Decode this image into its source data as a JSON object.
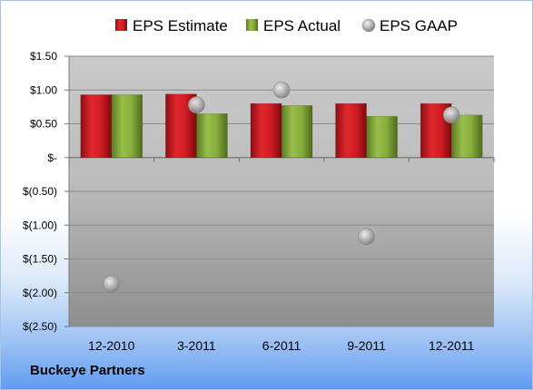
{
  "company": "Buckeye Partners",
  "chart_data": {
    "type": "bar",
    "categories": [
      "12-2010",
      "3-2011",
      "6-2011",
      "9-2011",
      "12-2011"
    ],
    "series": [
      {
        "name": "EPS Estimate",
        "type": "bar",
        "color": "#c8171d",
        "values": [
          0.93,
          0.94,
          0.8,
          0.8,
          0.8
        ]
      },
      {
        "name": "EPS Actual",
        "type": "bar",
        "color": "#7fa33a",
        "values": [
          0.93,
          0.65,
          0.77,
          0.61,
          0.63
        ]
      },
      {
        "name": "EPS GAAP",
        "type": "scatter",
        "color": "#a8a8a8",
        "values": [
          -1.87,
          0.78,
          1.0,
          -1.17,
          0.63
        ]
      }
    ],
    "y_ticks": [
      "$1.50",
      "$1.00",
      "$0.50",
      "$-",
      "$(0.50)",
      "$(1.00)",
      "$(1.50)",
      "$(2.00)",
      "$(2.50)"
    ],
    "ylim": [
      -2.5,
      1.5
    ],
    "grid": true,
    "legend_position": "top"
  }
}
